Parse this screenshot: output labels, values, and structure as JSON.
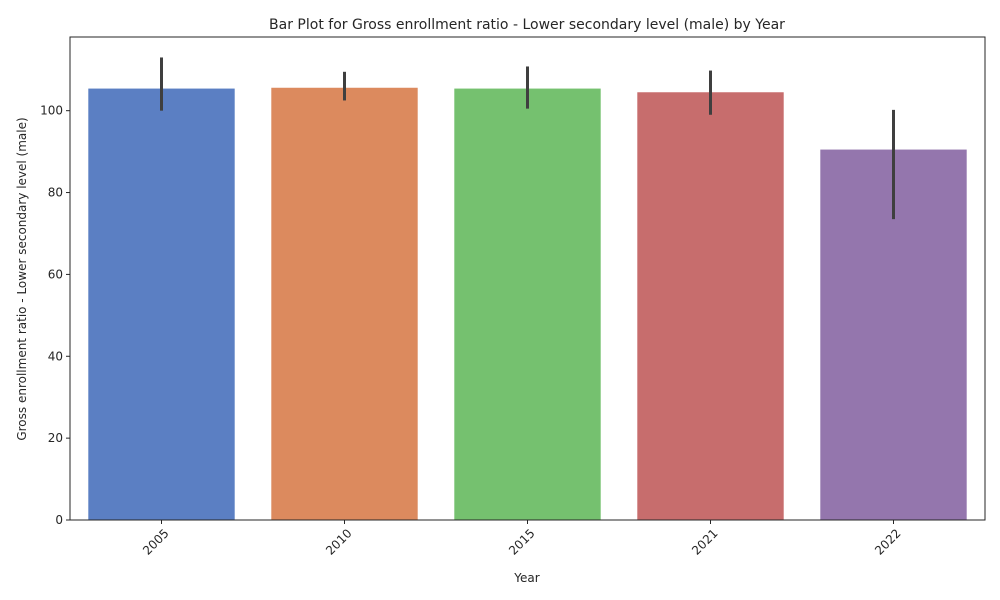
{
  "chart_data": {
    "type": "bar",
    "title": "Bar Plot for Gross enrollment ratio - Lower secondary level (male) by Year",
    "xlabel": "Year",
    "ylabel": "Gross enrollment ratio - Lower secondary level (male)",
    "categories": [
      "2005",
      "2010",
      "2015",
      "2021",
      "2022"
    ],
    "values": [
      105.4,
      105.6,
      105.4,
      104.5,
      90.5
    ],
    "error_low": [
      100.0,
      102.5,
      100.5,
      99.0,
      73.5
    ],
    "error_high": [
      113.0,
      109.5,
      110.8,
      109.8,
      100.2
    ],
    "colors": [
      "#5b7fc3",
      "#dc8a5e",
      "#75c16f",
      "#c76d6d",
      "#9476ad"
    ],
    "ylim": [
      0,
      118
    ],
    "yticks": [
      0,
      20,
      40,
      60,
      80,
      100
    ],
    "ytick_labels": [
      "0",
      "20",
      "40",
      "60",
      "80",
      "100"
    ],
    "grid": false,
    "legend": "none",
    "xtick_rotation": 45
  }
}
